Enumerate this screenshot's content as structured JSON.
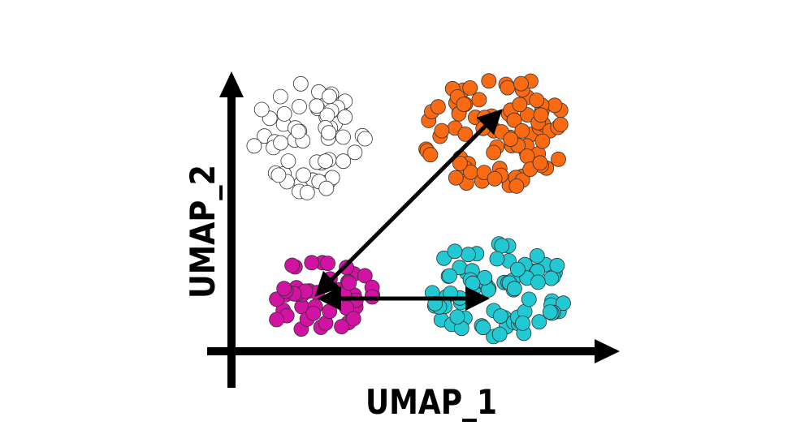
{
  "axes": {
    "x_label": "UMAP_1",
    "y_label": "UMAP_2"
  }
}
